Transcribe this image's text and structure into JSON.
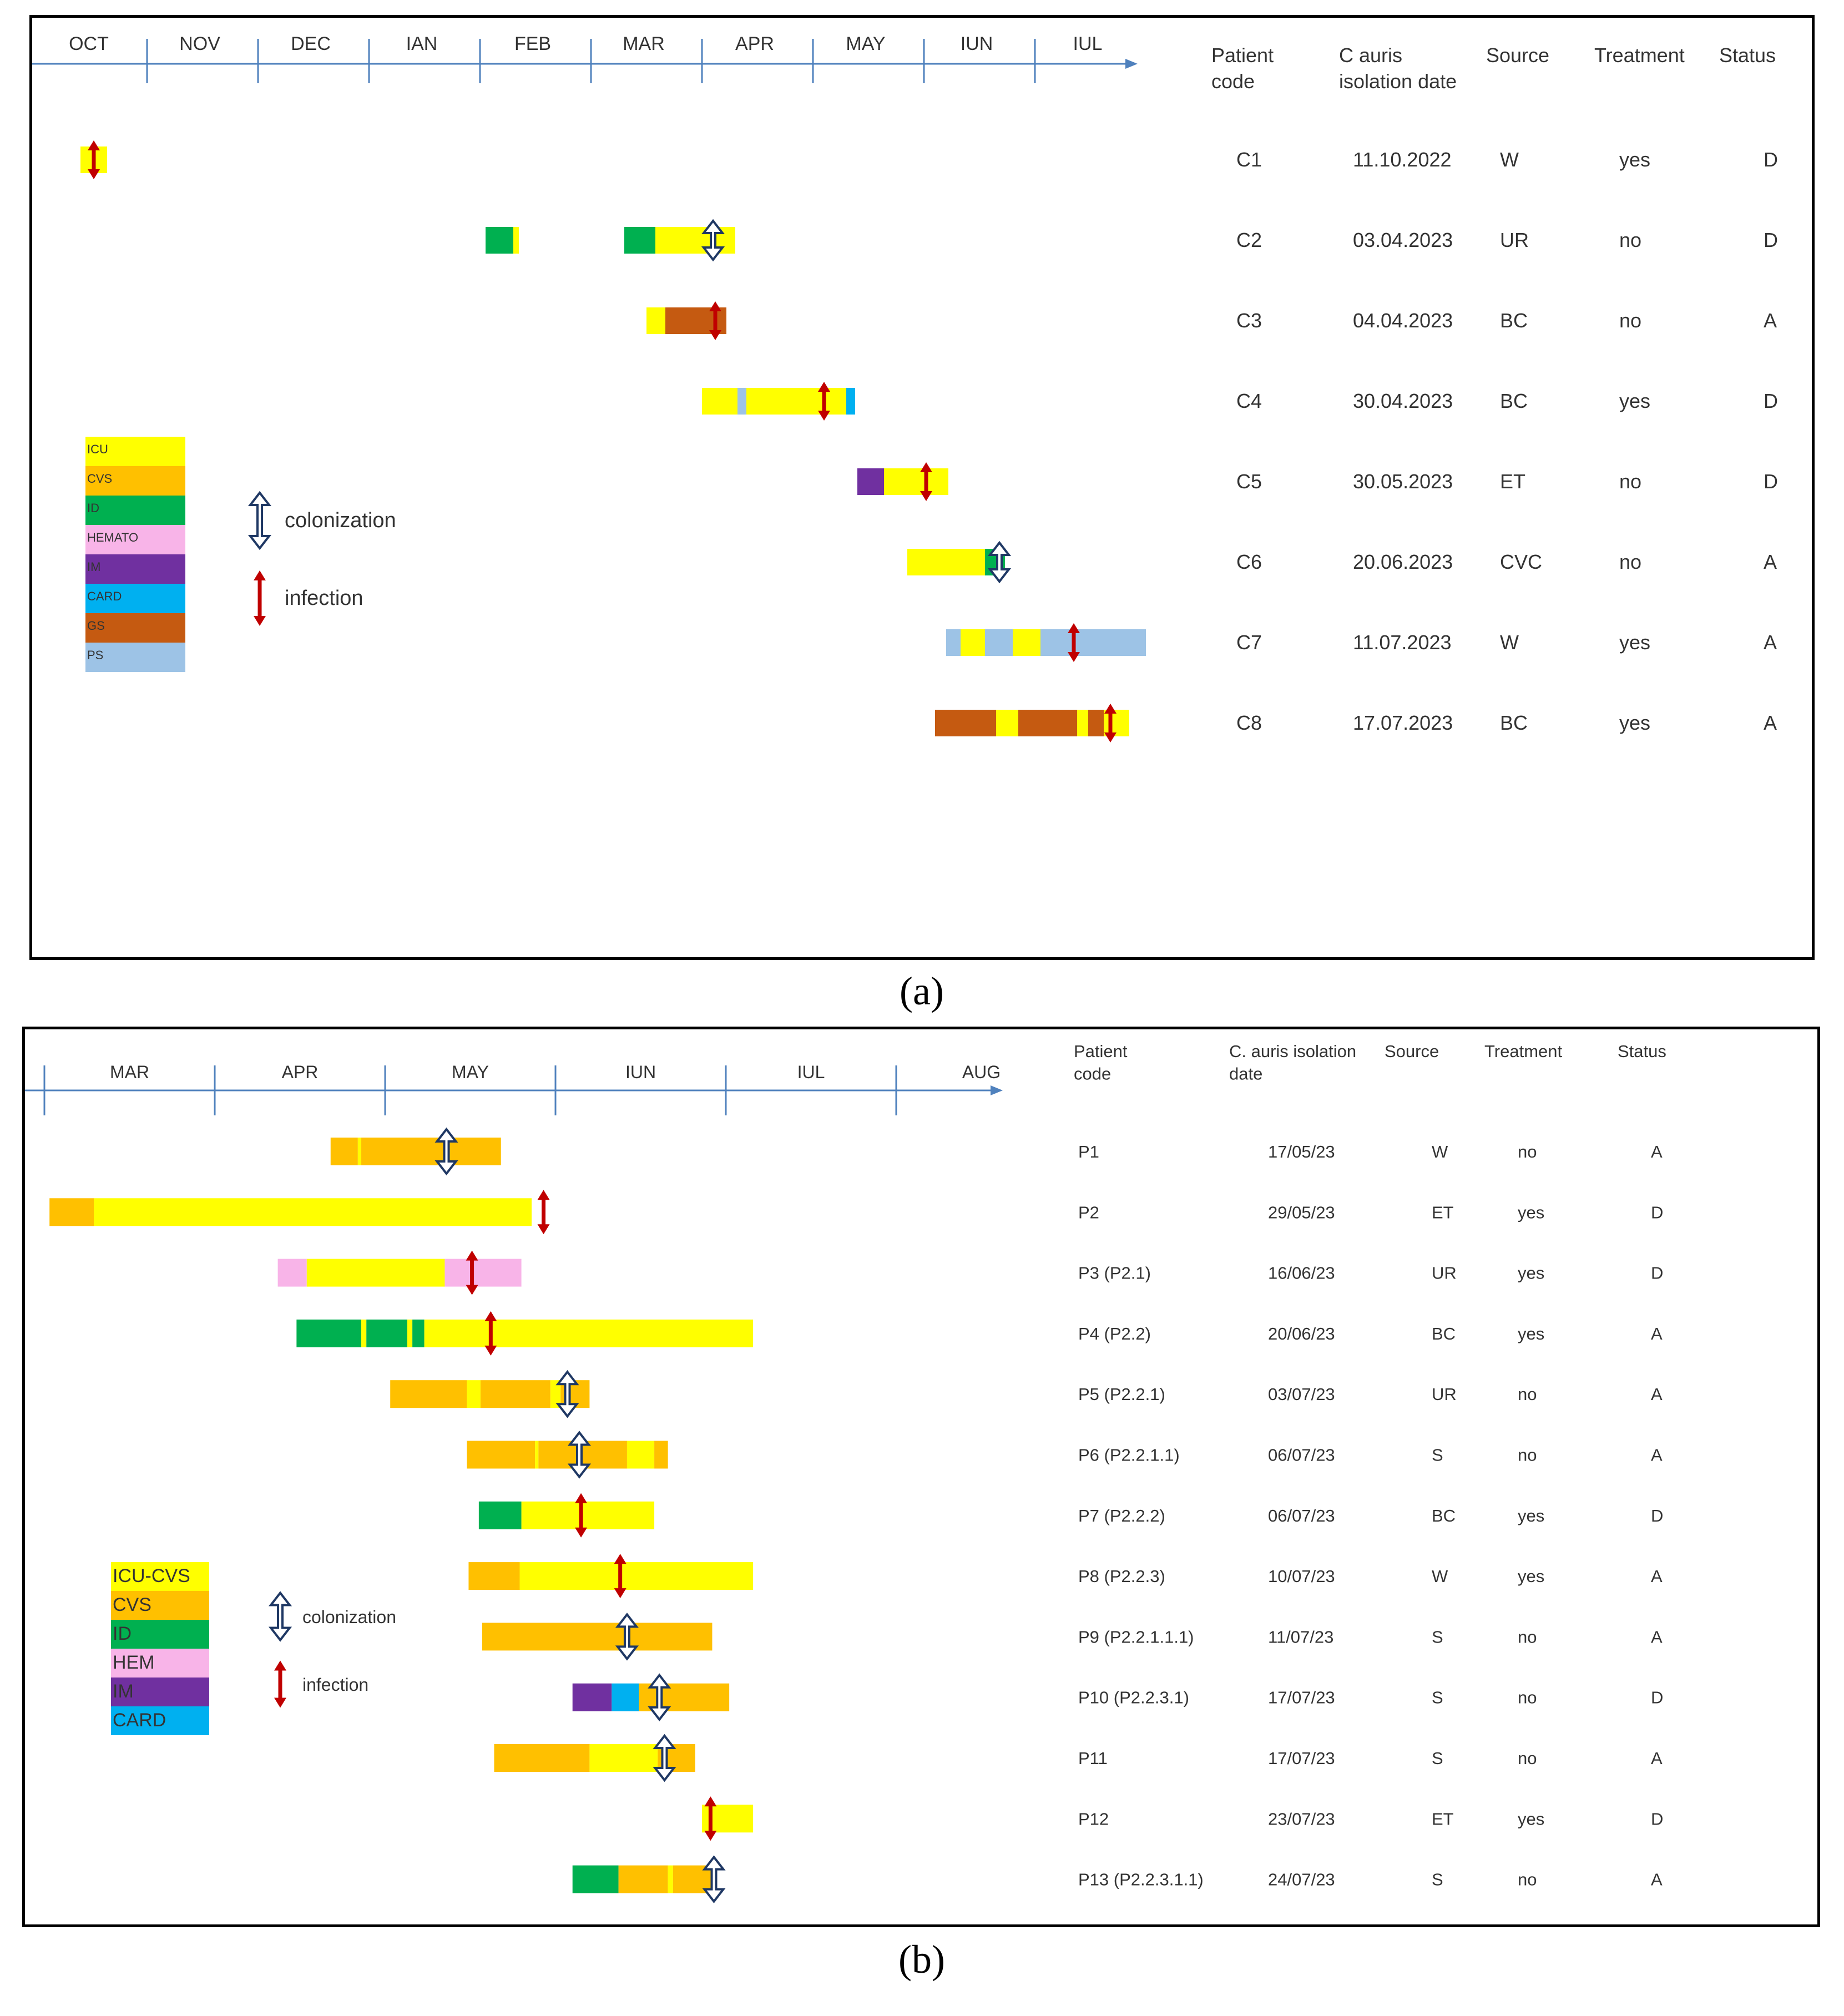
{
  "colors": {
    "ICU": "#ffff00",
    "CVS": "#ffc000",
    "ID": "#00b050",
    "HEM": "#f8b4e8",
    "IM": "#7030a0",
    "CARD": "#00b0f0",
    "GS": "#c55a11",
    "PS": "#9dc3e6",
    "axis": "#4f81bd",
    "colonization_arrow": "#1f3864",
    "infection_arrow": "#c00000"
  },
  "panels": [
    {
      "caption": "(a)",
      "months": [
        "OCT",
        "NOV",
        "DEC",
        "IAN",
        "FEB",
        "MAR",
        "APR",
        "MAY",
        "IUN",
        "IUL"
      ],
      "headers": [
        "Patient code",
        "C auris isolation date",
        "Source",
        "Treatment",
        "Status"
      ],
      "legend": [
        {
          "label": "ICU",
          "color": "ICU"
        },
        {
          "label": "CVS",
          "color": "CVS"
        },
        {
          "label": "ID",
          "color": "ID"
        },
        {
          "label": "HEMATO",
          "color": "HEM"
        },
        {
          "label": "IM",
          "color": "IM"
        },
        {
          "label": "CARD",
          "color": "CARD"
        },
        {
          "label": "GS",
          "color": "GS"
        },
        {
          "label": "PS",
          "color": "PS"
        }
      ],
      "legend_colonization": "colonization",
      "legend_infection": "infection",
      "rows": [
        {
          "code": "C1",
          "date": "11.10.2022",
          "source": "W",
          "treatment": "yes",
          "status": "D",
          "event": "infection",
          "segments": [
            {
              "ward": "ICU",
              "start": 0.4,
              "end": 0.64
            }
          ],
          "marker": 0.52
        },
        {
          "code": "C2",
          "date": "03.04.2023",
          "source": "UR",
          "treatment": "no",
          "status": "D",
          "event": "colonization",
          "segments": [
            {
              "ward": "ID",
              "start": 4.05,
              "end": 4.3
            },
            {
              "ward": "ICU",
              "start": 4.3,
              "end": 4.35
            },
            {
              "ward": "ID",
              "start": 5.3,
              "end": 5.58
            },
            {
              "ward": "ICU",
              "start": 5.58,
              "end": 6.3
            }
          ],
          "marker": 6.1
        },
        {
          "code": "C3",
          "date": "04.04.2023",
          "source": "BC",
          "treatment": "no",
          "status": "A",
          "event": "infection",
          "segments": [
            {
              "ward": "ICU",
              "start": 5.5,
              "end": 5.67
            },
            {
              "ward": "GS",
              "start": 5.67,
              "end": 6.22
            }
          ],
          "marker": 6.12
        },
        {
          "code": "C4",
          "date": "30.04.2023",
          "source": "BC",
          "treatment": "yes",
          "status": "D",
          "event": "infection",
          "segments": [
            {
              "ward": "ICU",
              "start": 6.0,
              "end": 6.32
            },
            {
              "ward": "PS",
              "start": 6.32,
              "end": 6.4
            },
            {
              "ward": "ICU",
              "start": 6.4,
              "end": 7.3
            },
            {
              "ward": "CARD",
              "start": 7.3,
              "end": 7.38
            }
          ],
          "marker": 7.1
        },
        {
          "code": "C5",
          "date": "30.05.2023",
          "source": "ET",
          "treatment": "no",
          "status": "D",
          "event": "infection",
          "segments": [
            {
              "ward": "IM",
              "start": 7.4,
              "end": 7.64
            },
            {
              "ward": "ICU",
              "start": 7.64,
              "end": 8.22
            }
          ],
          "marker": 8.02
        },
        {
          "code": "C6",
          "date": "20.06.2023",
          "source": "CVC",
          "treatment": "no",
          "status": "A",
          "event": "colonization",
          "segments": [
            {
              "ward": "ICU",
              "start": 7.85,
              "end": 8.55
            },
            {
              "ward": "ID",
              "start": 8.55,
              "end": 8.73
            }
          ],
          "marker": 8.68
        },
        {
          "code": "C7",
          "date": "11.07.2023",
          "source": "W",
          "treatment": "yes",
          "status": "A",
          "event": "infection",
          "segments": [
            {
              "ward": "PS",
              "start": 8.2,
              "end": 8.33
            },
            {
              "ward": "ICU",
              "start": 8.33,
              "end": 8.55
            },
            {
              "ward": "PS",
              "start": 8.55,
              "end": 8.8
            },
            {
              "ward": "ICU",
              "start": 8.8,
              "end": 9.05
            },
            {
              "ward": "PS",
              "start": 9.05,
              "end": 10.0
            }
          ],
          "marker": 9.35
        },
        {
          "code": "C8",
          "date": "17.07.2023",
          "source": "BC",
          "treatment": "yes",
          "status": "A",
          "event": "infection",
          "segments": [
            {
              "ward": "GS",
              "start": 8.1,
              "end": 8.65
            },
            {
              "ward": "ICU",
              "start": 8.65,
              "end": 8.85
            },
            {
              "ward": "GS",
              "start": 8.85,
              "end": 9.38
            },
            {
              "ward": "ICU",
              "start": 9.38,
              "end": 9.48
            },
            {
              "ward": "GS",
              "start": 9.48,
              "end": 9.62
            },
            {
              "ward": "ICU",
              "start": 9.62,
              "end": 9.85
            }
          ],
          "marker": 9.68
        }
      ]
    },
    {
      "caption": "(b)",
      "months": [
        "MAR",
        "APR",
        "MAY",
        "IUN",
        "IUL",
        "AUG"
      ],
      "headers": [
        "Patient code",
        "C. auris isolation date",
        "Source",
        "Treatment",
        "Status"
      ],
      "legend": [
        {
          "label": "ICU-CVS",
          "color": "ICU"
        },
        {
          "label": "CVS",
          "color": "CVS"
        },
        {
          "label": "ID",
          "color": "ID"
        },
        {
          "label": "HEM",
          "color": "HEM"
        },
        {
          "label": "IM",
          "color": "IM"
        },
        {
          "label": "CARD",
          "color": "CARD"
        }
      ],
      "legend_colonization": "colonization",
      "legend_infection": "infection",
      "rows": [
        {
          "code": "P1",
          "date": "17/05/23",
          "source": "W",
          "treatment": "no",
          "status": "A",
          "event": "colonization",
          "segments": [
            {
              "ward": "CVS",
              "start": 1.68,
              "end": 1.84
            },
            {
              "ward": "ICU",
              "start": 1.84,
              "end": 1.86
            },
            {
              "ward": "CVS",
              "start": 1.86,
              "end": 2.68
            }
          ],
          "marker": 2.36
        },
        {
          "code": "P2",
          "date": "29/05/23",
          "source": "ET",
          "treatment": "yes",
          "status": "D",
          "event": "infection",
          "segments": [
            {
              "ward": "CVS",
              "start": 0.03,
              "end": 0.29
            },
            {
              "ward": "ICU",
              "start": 0.29,
              "end": 2.86
            }
          ],
          "marker": 2.93
        },
        {
          "code": "P3 (P2.1)",
          "date": "16/06/23",
          "source": "UR",
          "treatment": "yes",
          "status": "D",
          "event": "infection",
          "segments": [
            {
              "ward": "HEM",
              "start": 1.37,
              "end": 1.54
            },
            {
              "ward": "ICU",
              "start": 1.54,
              "end": 2.35
            },
            {
              "ward": "HEM",
              "start": 2.35,
              "end": 2.8
            }
          ],
          "marker": 2.51
        },
        {
          "code": "P4 (P2.2)",
          "date": "20/06/23",
          "source": "BC",
          "treatment": "yes",
          "status": "A",
          "event": "infection",
          "segments": [
            {
              "ward": "ID",
              "start": 1.48,
              "end": 1.86
            },
            {
              "ward": "ICU",
              "start": 1.86,
              "end": 1.89
            },
            {
              "ward": "ID",
              "start": 1.89,
              "end": 2.13
            },
            {
              "ward": "ICU",
              "start": 2.13,
              "end": 2.16
            },
            {
              "ward": "ID",
              "start": 2.16,
              "end": 2.23
            },
            {
              "ward": "ICU",
              "start": 2.23,
              "end": 4.16
            }
          ],
          "marker": 2.62
        },
        {
          "code": "P5 (P2.2.1)",
          "date": "03/07/23",
          "source": "UR",
          "treatment": "no",
          "status": "A",
          "event": "colonization",
          "segments": [
            {
              "ward": "CVS",
              "start": 2.03,
              "end": 2.48
            },
            {
              "ward": "ICU",
              "start": 2.48,
              "end": 2.56
            },
            {
              "ward": "CVS",
              "start": 2.56,
              "end": 2.97
            },
            {
              "ward": "ICU",
              "start": 2.97,
              "end": 3.03
            },
            {
              "ward": "CVS",
              "start": 3.03,
              "end": 3.2
            }
          ],
          "marker": 3.07
        },
        {
          "code": "P6 (P2.2.1.1)",
          "date": "06/07/23",
          "source": "S",
          "treatment": "no",
          "status": "A",
          "event": "colonization",
          "segments": [
            {
              "ward": "CVS",
              "start": 2.48,
              "end": 2.88
            },
            {
              "ward": "ICU",
              "start": 2.88,
              "end": 2.9
            },
            {
              "ward": "CVS",
              "start": 2.9,
              "end": 3.42
            },
            {
              "ward": "ICU",
              "start": 3.42,
              "end": 3.58
            },
            {
              "ward": "CVS",
              "start": 3.58,
              "end": 3.66
            }
          ],
          "marker": 3.14
        },
        {
          "code": "P7 (P2.2.2)",
          "date": "06/07/23",
          "source": "BC",
          "treatment": "yes",
          "status": "D",
          "event": "infection",
          "segments": [
            {
              "ward": "ID",
              "start": 2.55,
              "end": 2.8
            },
            {
              "ward": "ICU",
              "start": 2.8,
              "end": 3.58
            }
          ],
          "marker": 3.15
        },
        {
          "code": "P8 (P2.2.3)",
          "date": "10/07/23",
          "source": "W",
          "treatment": "yes",
          "status": "A",
          "event": "infection",
          "segments": [
            {
              "ward": "CVS",
              "start": 2.49,
              "end": 2.79
            },
            {
              "ward": "ICU",
              "start": 2.79,
              "end": 4.16
            }
          ],
          "marker": 3.38
        },
        {
          "code": "P9 (P2.2.1.1.1)",
          "date": "11/07/23",
          "source": "S",
          "treatment": "no",
          "status": "A",
          "event": "colonization",
          "segments": [
            {
              "ward": "CVS",
              "start": 2.57,
              "end": 3.92
            }
          ],
          "marker": 3.42
        },
        {
          "code": "P10 (P2.2.3.1)",
          "date": "17/07/23",
          "source": "S",
          "treatment": "no",
          "status": "D",
          "event": "colonization",
          "segments": [
            {
              "ward": "IM",
              "start": 3.1,
              "end": 3.33
            },
            {
              "ward": "CARD",
              "start": 3.33,
              "end": 3.49
            },
            {
              "ward": "CVS",
              "start": 3.49,
              "end": 4.02
            }
          ],
          "marker": 3.61
        },
        {
          "code": "P11",
          "date": "17/07/23",
          "source": "S",
          "treatment": "no",
          "status": "A",
          "event": "colonization",
          "segments": [
            {
              "ward": "CVS",
              "start": 2.64,
              "end": 3.2
            },
            {
              "ward": "ICU",
              "start": 3.2,
              "end": 3.6
            },
            {
              "ward": "CVS",
              "start": 3.6,
              "end": 3.82
            }
          ],
          "marker": 3.64
        },
        {
          "code": "P12",
          "date": "23/07/23",
          "source": "ET",
          "treatment": "yes",
          "status": "D",
          "event": "infection",
          "segments": [
            {
              "ward": "ICU",
              "start": 3.86,
              "end": 4.16
            }
          ],
          "marker": 3.91
        },
        {
          "code": "P13 (P2.2.3.1.1)",
          "date": "24/07/23",
          "source": "S",
          "treatment": "no",
          "status": "A",
          "event": "colonization",
          "segments": [
            {
              "ward": "ID",
              "start": 3.1,
              "end": 3.37
            },
            {
              "ward": "CVS",
              "start": 3.37,
              "end": 3.66
            },
            {
              "ward": "ICU",
              "start": 3.66,
              "end": 3.69
            },
            {
              "ward": "CVS",
              "start": 3.69,
              "end": 3.92
            }
          ],
          "marker": 3.93
        }
      ]
    }
  ]
}
